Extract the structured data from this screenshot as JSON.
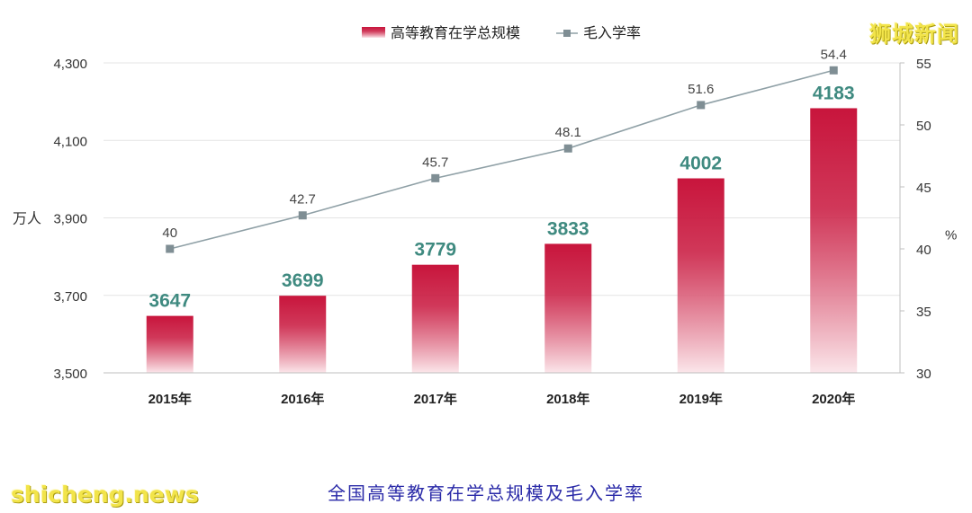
{
  "watermark_top": "狮城新闻",
  "watermark_bottom": "shicheng.news",
  "caption": "全国高等教育在学总规模及毛入学率",
  "colors": {
    "bar_top": "#c8153c",
    "bar_bottom": "#fbe6ea",
    "bar_label": "#3f8a80",
    "line": "#8fa0a6",
    "marker": "#7f8e94",
    "grid": "#e4e4e4",
    "tick": "#333333"
  },
  "chart_data": {
    "type": "bar",
    "categories": [
      "2015年",
      "2016年",
      "2017年",
      "2018年",
      "2019年",
      "2020年"
    ],
    "series": [
      {
        "name": "高等教育在学总规模",
        "type": "bar",
        "axis": "left",
        "values": [
          3647,
          3699,
          3779,
          3833,
          4002,
          4183
        ],
        "labels": [
          "3647",
          "3699",
          "3779",
          "3833",
          "4002",
          "4183"
        ]
      },
      {
        "name": "毛入学率",
        "type": "line",
        "axis": "right",
        "values": [
          40,
          42.7,
          45.7,
          48.1,
          51.6,
          54.4
        ],
        "labels": [
          "40",
          "42.7",
          "45.7",
          "48.1",
          "51.6",
          "54.4"
        ]
      }
    ],
    "ylabel": "万人",
    "y2label": "%",
    "ylim": [
      3500,
      4300
    ],
    "yticks": [
      3500,
      3700,
      3900,
      4100,
      4300
    ],
    "ytick_labels": [
      "3,500",
      "3,700",
      "3,900",
      "4,100",
      "4,300"
    ],
    "y2lim": [
      30,
      55
    ],
    "y2ticks": [
      30,
      35,
      40,
      45,
      50,
      55
    ],
    "y2tick_labels": [
      "30",
      "35",
      "40",
      "45",
      "50",
      "55"
    ],
    "grid": true,
    "legend_position": "top-center"
  }
}
